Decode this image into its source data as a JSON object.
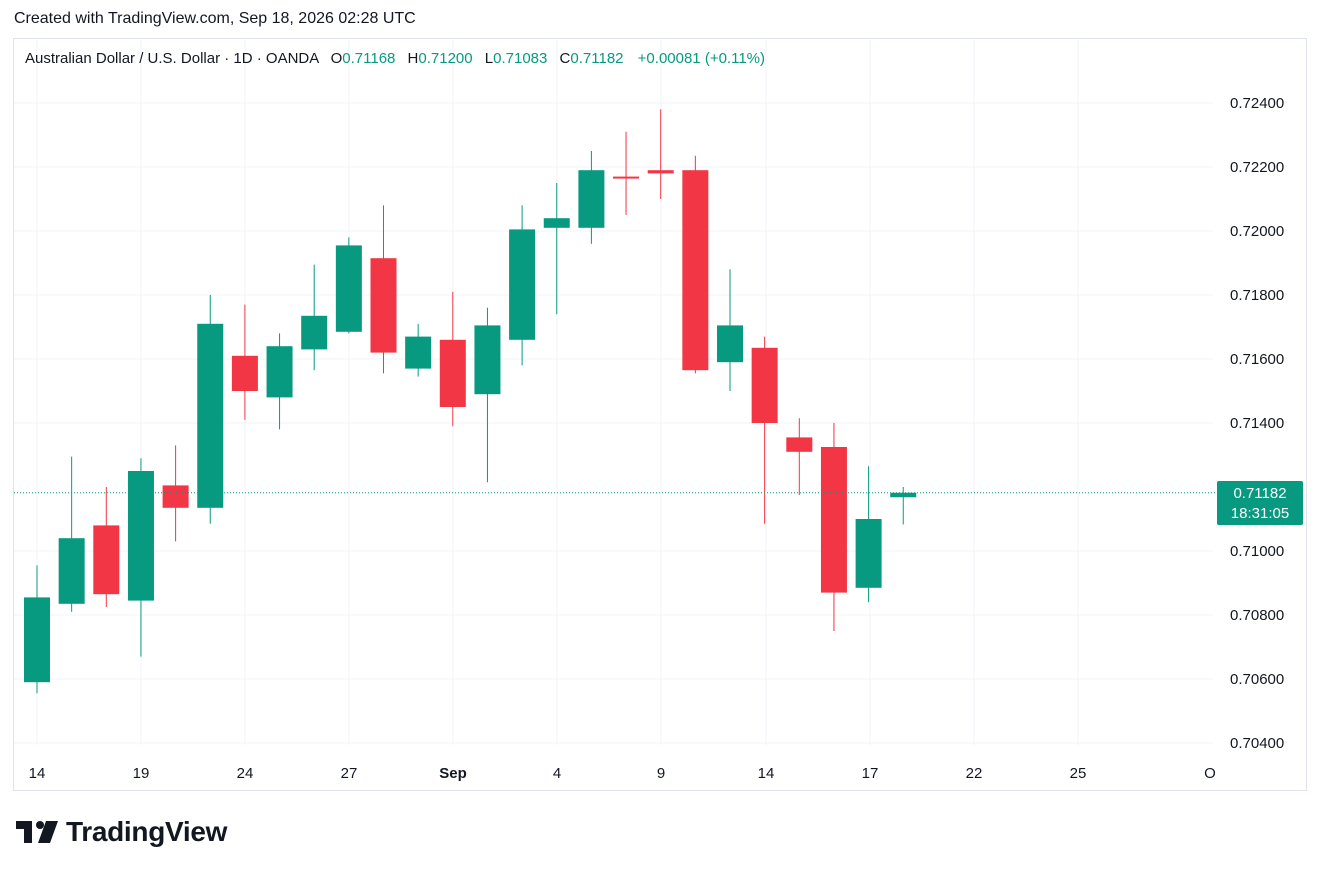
{
  "header": {
    "created_text": "Created with TradingView.com, Sep 18, 2026 02:28 UTC"
  },
  "legend": {
    "symbol": "Australian Dollar / U.S. Dollar · 1D · OANDA",
    "open_label": "O",
    "open": "0.71168",
    "high_label": "H",
    "high": "0.71200",
    "low_label": "L",
    "low": "0.71083",
    "close_label": "C",
    "close": "0.71182",
    "change": "+0.00081 (+0.11%)"
  },
  "price_tag": {
    "price": "0.71182",
    "countdown": "18:31:05"
  },
  "brand": {
    "name": "TradingView"
  },
  "colors": {
    "up": "#089981",
    "down": "#f23645",
    "grid": "#f0f3fa",
    "text": "#131722"
  },
  "chart_data": {
    "type": "candlestick",
    "title": "Australian Dollar / U.S. Dollar · 1D · OANDA",
    "ylim": [
      0.7037,
      0.7247
    ],
    "y_ticks": [
      "0.72400",
      "0.72200",
      "0.72000",
      "0.71800",
      "0.71600",
      "0.71400",
      "0.71000",
      "0.70800",
      "0.70600",
      "0.70400"
    ],
    "x_tick_labels": [
      "14",
      "19",
      "24",
      "27",
      "Sep",
      "4",
      "9",
      "14",
      "17",
      "22",
      "25",
      "O"
    ],
    "last_price": 0.71182,
    "grid": true,
    "candles": [
      {
        "o": 0.7059,
        "h": 0.70955,
        "l": 0.70555,
        "c": 0.70855
      },
      {
        "o": 0.70835,
        "h": 0.71295,
        "l": 0.7081,
        "c": 0.7104
      },
      {
        "o": 0.7108,
        "h": 0.712,
        "l": 0.70825,
        "c": 0.70865
      },
      {
        "o": 0.70845,
        "h": 0.7129,
        "l": 0.7067,
        "c": 0.7125
      },
      {
        "o": 0.71205,
        "h": 0.7133,
        "l": 0.7103,
        "c": 0.71135
      },
      {
        "o": 0.71135,
        "h": 0.718,
        "l": 0.71085,
        "c": 0.7171
      },
      {
        "o": 0.7161,
        "h": 0.7177,
        "l": 0.7141,
        "c": 0.715
      },
      {
        "o": 0.7148,
        "h": 0.7168,
        "l": 0.7138,
        "c": 0.7164
      },
      {
        "o": 0.7163,
        "h": 0.71895,
        "l": 0.71565,
        "c": 0.71735
      },
      {
        "o": 0.71685,
        "h": 0.7198,
        "l": 0.7168,
        "c": 0.71955
      },
      {
        "o": 0.71915,
        "h": 0.7208,
        "l": 0.71555,
        "c": 0.7162
      },
      {
        "o": 0.7157,
        "h": 0.7171,
        "l": 0.71545,
        "c": 0.7167
      },
      {
        "o": 0.7166,
        "h": 0.7181,
        "l": 0.7139,
        "c": 0.7145
      },
      {
        "o": 0.7149,
        "h": 0.7176,
        "l": 0.71215,
        "c": 0.71705
      },
      {
        "o": 0.7166,
        "h": 0.7208,
        "l": 0.7158,
        "c": 0.72005
      },
      {
        "o": 0.7201,
        "h": 0.7215,
        "l": 0.7174,
        "c": 0.7204
      },
      {
        "o": 0.7201,
        "h": 0.7225,
        "l": 0.7196,
        "c": 0.7219
      },
      {
        "o": 0.7217,
        "h": 0.7231,
        "l": 0.7205,
        "c": 0.72165
      },
      {
        "o": 0.7219,
        "h": 0.7238,
        "l": 0.721,
        "c": 0.7218
      },
      {
        "o": 0.7219,
        "h": 0.72235,
        "l": 0.71555,
        "c": 0.71565
      },
      {
        "o": 0.7159,
        "h": 0.7188,
        "l": 0.715,
        "c": 0.71705
      },
      {
        "o": 0.71635,
        "h": 0.7167,
        "l": 0.71085,
        "c": 0.714
      },
      {
        "o": 0.71355,
        "h": 0.71415,
        "l": 0.71175,
        "c": 0.7131
      },
      {
        "o": 0.71325,
        "h": 0.714,
        "l": 0.7075,
        "c": 0.7087
      },
      {
        "o": 0.70885,
        "h": 0.71265,
        "l": 0.7084,
        "c": 0.711
      },
      {
        "o": 0.71168,
        "h": 0.712,
        "l": 0.71083,
        "c": 0.71182
      }
    ]
  }
}
